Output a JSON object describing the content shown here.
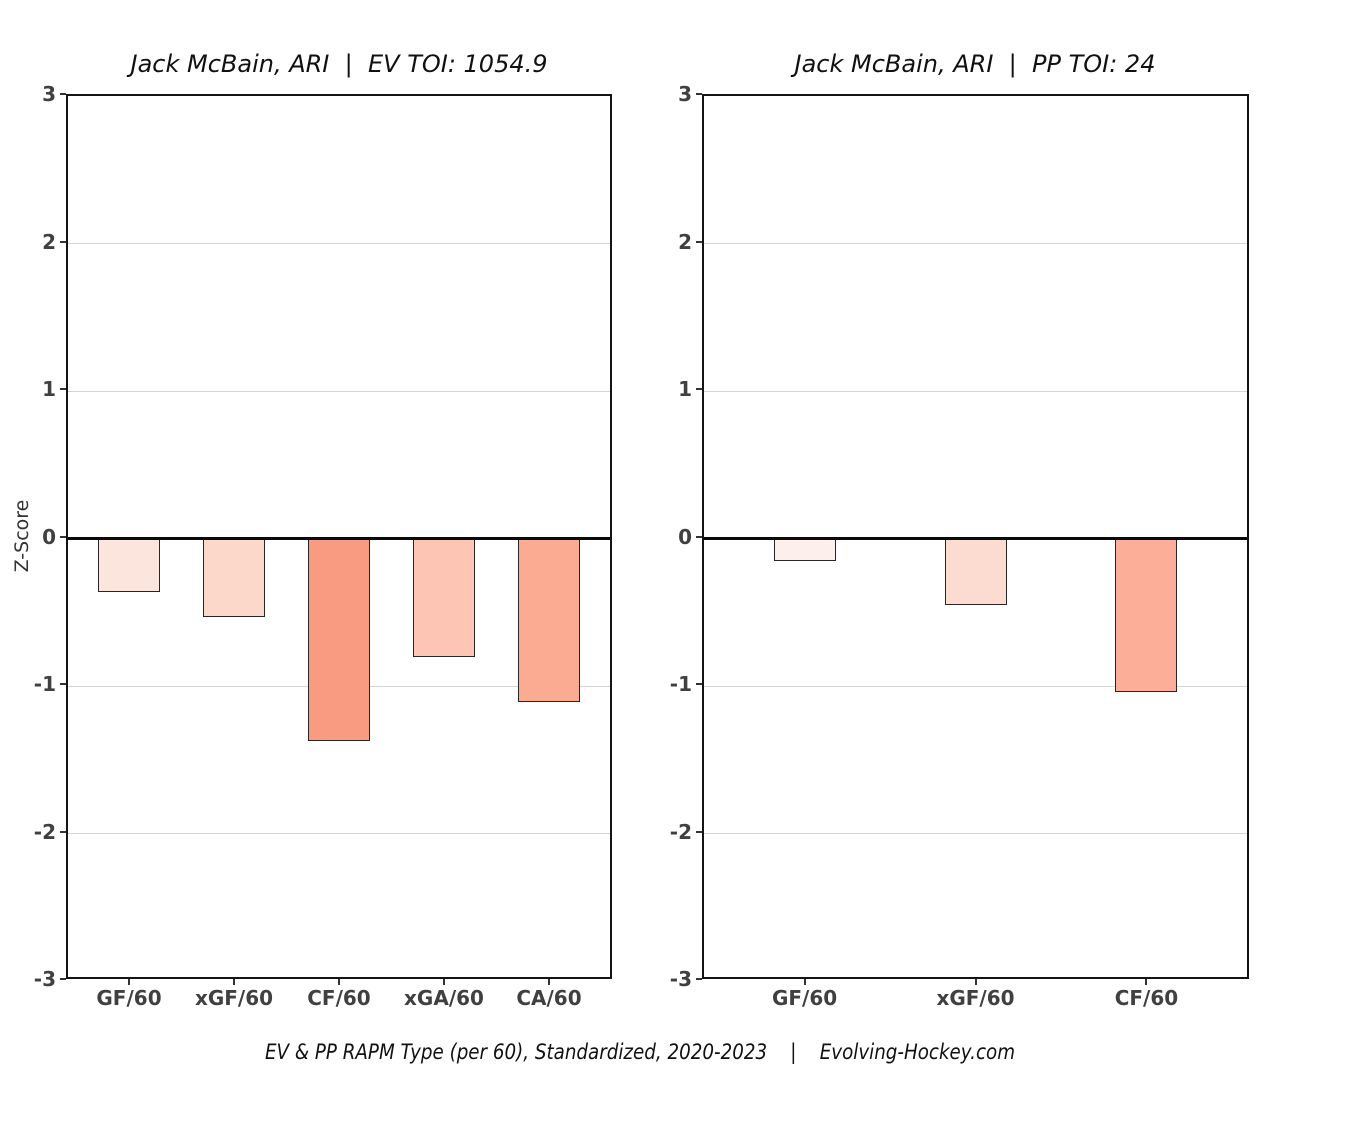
{
  "figure": {
    "ylabel": "Z-Score",
    "caption": "EV & PP RAPM Type (per 60), Standardized, 2020-2023    |    Evolving-Hockey.com"
  },
  "chart_data": [
    {
      "type": "bar",
      "title": "Jack McBain, ARI  |  EV TOI: 1054.9",
      "categories": [
        "GF/60",
        "xGF/60",
        "CF/60",
        "xGA/60",
        "CA/60"
      ],
      "values": [
        -0.36,
        -0.53,
        -1.37,
        -0.8,
        -1.11
      ],
      "bar_colors": [
        "#fce5dd",
        "#fcd8cb",
        "#f89b81",
        "#fdc5b4",
        "#fbab92"
      ],
      "xlabel": "",
      "ylabel": "Z-Score",
      "ylim": [
        -3,
        3
      ],
      "yticks": [
        3,
        2,
        1,
        0,
        -1,
        -2,
        -3
      ],
      "grid": true,
      "legend": false
    },
    {
      "type": "bar",
      "title": "Jack McBain, ARI  |  PP TOI: 24",
      "categories": [
        "GF/60",
        "xGF/60",
        "CF/60"
      ],
      "values": [
        -0.15,
        -0.45,
        -1.04
      ],
      "bar_colors": [
        "#fdefeb",
        "#fcdcd1",
        "#fdae99"
      ],
      "xlabel": "",
      "ylabel": "Z-Score",
      "ylim": [
        -3,
        3
      ],
      "yticks": [
        3,
        2,
        1,
        0,
        -1,
        -2,
        -3
      ],
      "grid": true,
      "legend": false
    }
  ],
  "colors": {
    "background": "#ffffff",
    "grid": "#d4d4d4",
    "axis_text": "#404040",
    "zero_line": "#0a0a0a",
    "plot_border": "#141414",
    "bar_edge": "#262626"
  }
}
